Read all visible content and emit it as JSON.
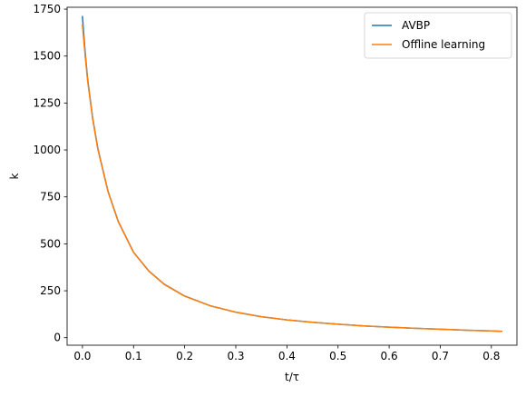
{
  "chart_data": {
    "type": "line",
    "title": "",
    "xlabel": "t/τ",
    "ylabel": "k",
    "xlim": [
      -0.03,
      0.85
    ],
    "ylim": [
      -40,
      1760
    ],
    "xticks": [
      0.0,
      0.1,
      0.2,
      0.3,
      0.4,
      0.5,
      0.6,
      0.7,
      0.8
    ],
    "xtick_labels": [
      "0.0",
      "0.1",
      "0.2",
      "0.3",
      "0.4",
      "0.5",
      "0.6",
      "0.7",
      "0.8"
    ],
    "yticks": [
      0,
      250,
      500,
      750,
      1000,
      1250,
      1500,
      1750
    ],
    "ytick_labels": [
      "0",
      "250",
      "500",
      "750",
      "1000",
      "1250",
      "1500",
      "1750"
    ],
    "grid": false,
    "legend_position": "upper right",
    "series": [
      {
        "name": "AVBP",
        "color": "#1f77b4",
        "x": [
          0.0,
          0.005,
          0.01,
          0.02,
          0.03,
          0.05,
          0.07,
          0.1,
          0.13,
          0.16,
          0.2,
          0.25,
          0.3,
          0.35,
          0.4,
          0.45,
          0.5,
          0.55,
          0.6,
          0.65,
          0.7,
          0.75,
          0.8,
          0.82
        ],
        "y": [
          1710,
          1530,
          1380,
          1170,
          1010,
          780,
          620,
          455,
          355,
          285,
          222,
          170,
          136,
          112,
          95,
          82,
          72,
          63,
          56,
          50,
          45,
          40,
          36,
          34
        ]
      },
      {
        "name": "Offline learning",
        "color": "#ff7f0e",
        "x": [
          0.0,
          0.005,
          0.01,
          0.02,
          0.03,
          0.05,
          0.07,
          0.1,
          0.13,
          0.16,
          0.2,
          0.25,
          0.3,
          0.35,
          0.4,
          0.45,
          0.5,
          0.55,
          0.6,
          0.65,
          0.7,
          0.75,
          0.8,
          0.82
        ],
        "y": [
          1665,
          1510,
          1370,
          1165,
          1005,
          778,
          618,
          454,
          354,
          284,
          221,
          170,
          136,
          112,
          95,
          82,
          72,
          63,
          56,
          50,
          45,
          40,
          36,
          34
        ]
      }
    ]
  }
}
